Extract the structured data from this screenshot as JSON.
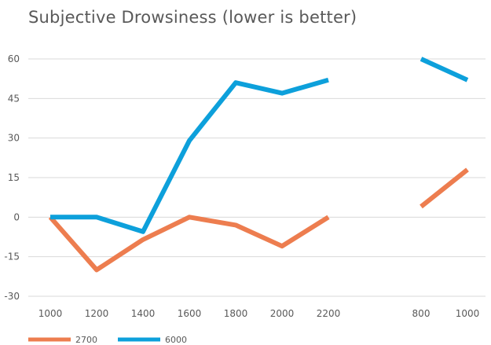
{
  "chart_data": {
    "type": "line",
    "title": "Subjective Drowsiness (lower is better)",
    "xlabel": "",
    "ylabel": "",
    "categories": [
      "1000",
      "1200",
      "1400",
      "1600",
      "1800",
      "2000",
      "2200",
      "",
      "800",
      "1000"
    ],
    "y_ticks": [
      "60",
      "45",
      "30",
      "15",
      "0",
      "-15",
      "-30"
    ],
    "ylim": [
      -30,
      60
    ],
    "grid": true,
    "legend_position": "bottom-left",
    "series": [
      {
        "name": "2700",
        "color": "#ED7D4F",
        "values": [
          0,
          -20,
          -8.5,
          0,
          -3,
          -11,
          0,
          null,
          4,
          18
        ]
      },
      {
        "name": "6000",
        "color": "#0DA0DB",
        "values": [
          0,
          0,
          -5.5,
          29,
          51,
          47,
          52,
          null,
          60,
          52
        ]
      }
    ]
  }
}
